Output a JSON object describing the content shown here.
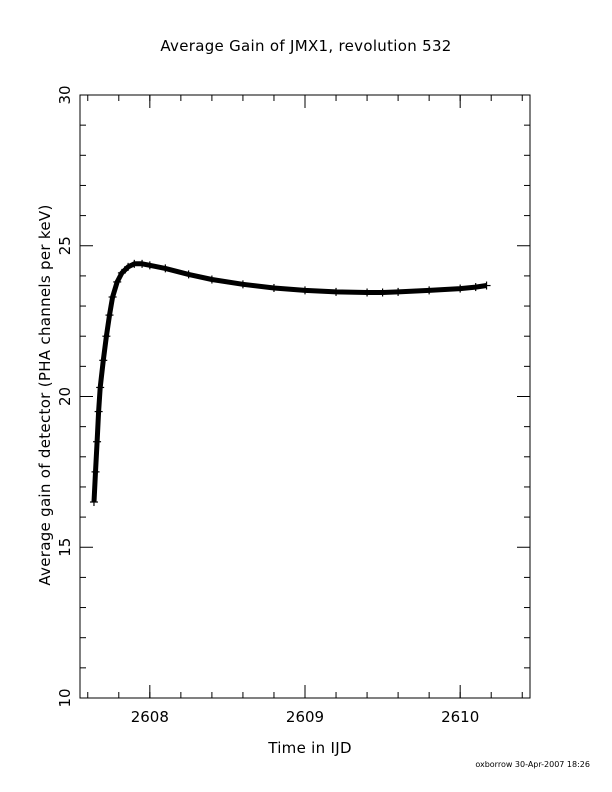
{
  "chart_data": {
    "type": "scatter",
    "title": "Average Gain of JMX1, revolution 532",
    "xlabel": "Time in IJD",
    "ylabel": "Average gain of detector (PHA channels per keV)",
    "xlim": [
      2607.55,
      2610.45
    ],
    "ylim": [
      10,
      30
    ],
    "xticks": [
      2608,
      2609,
      2610
    ],
    "yticks": [
      10,
      15,
      20,
      25,
      30
    ],
    "marker": "plus",
    "grid": false,
    "x": [
      2607.64,
      2607.65,
      2607.66,
      2607.67,
      2607.68,
      2607.7,
      2607.72,
      2607.74,
      2607.76,
      2607.79,
      2607.82,
      2607.86,
      2607.9,
      2607.95,
      2608.0,
      2608.1,
      2608.25,
      2608.4,
      2608.6,
      2608.8,
      2609.0,
      2609.2,
      2609.4,
      2609.5,
      2609.6,
      2609.8,
      2610.0,
      2610.1,
      2610.17
    ],
    "y": [
      16.5,
      17.5,
      18.5,
      19.5,
      20.3,
      21.2,
      22.0,
      22.7,
      23.3,
      23.8,
      24.1,
      24.3,
      24.4,
      24.4,
      24.35,
      24.25,
      24.05,
      23.88,
      23.72,
      23.6,
      23.52,
      23.47,
      23.45,
      23.45,
      23.47,
      23.52,
      23.58,
      23.63,
      23.68
    ]
  },
  "footer": "oxborrow 30-Apr-2007 18:26"
}
